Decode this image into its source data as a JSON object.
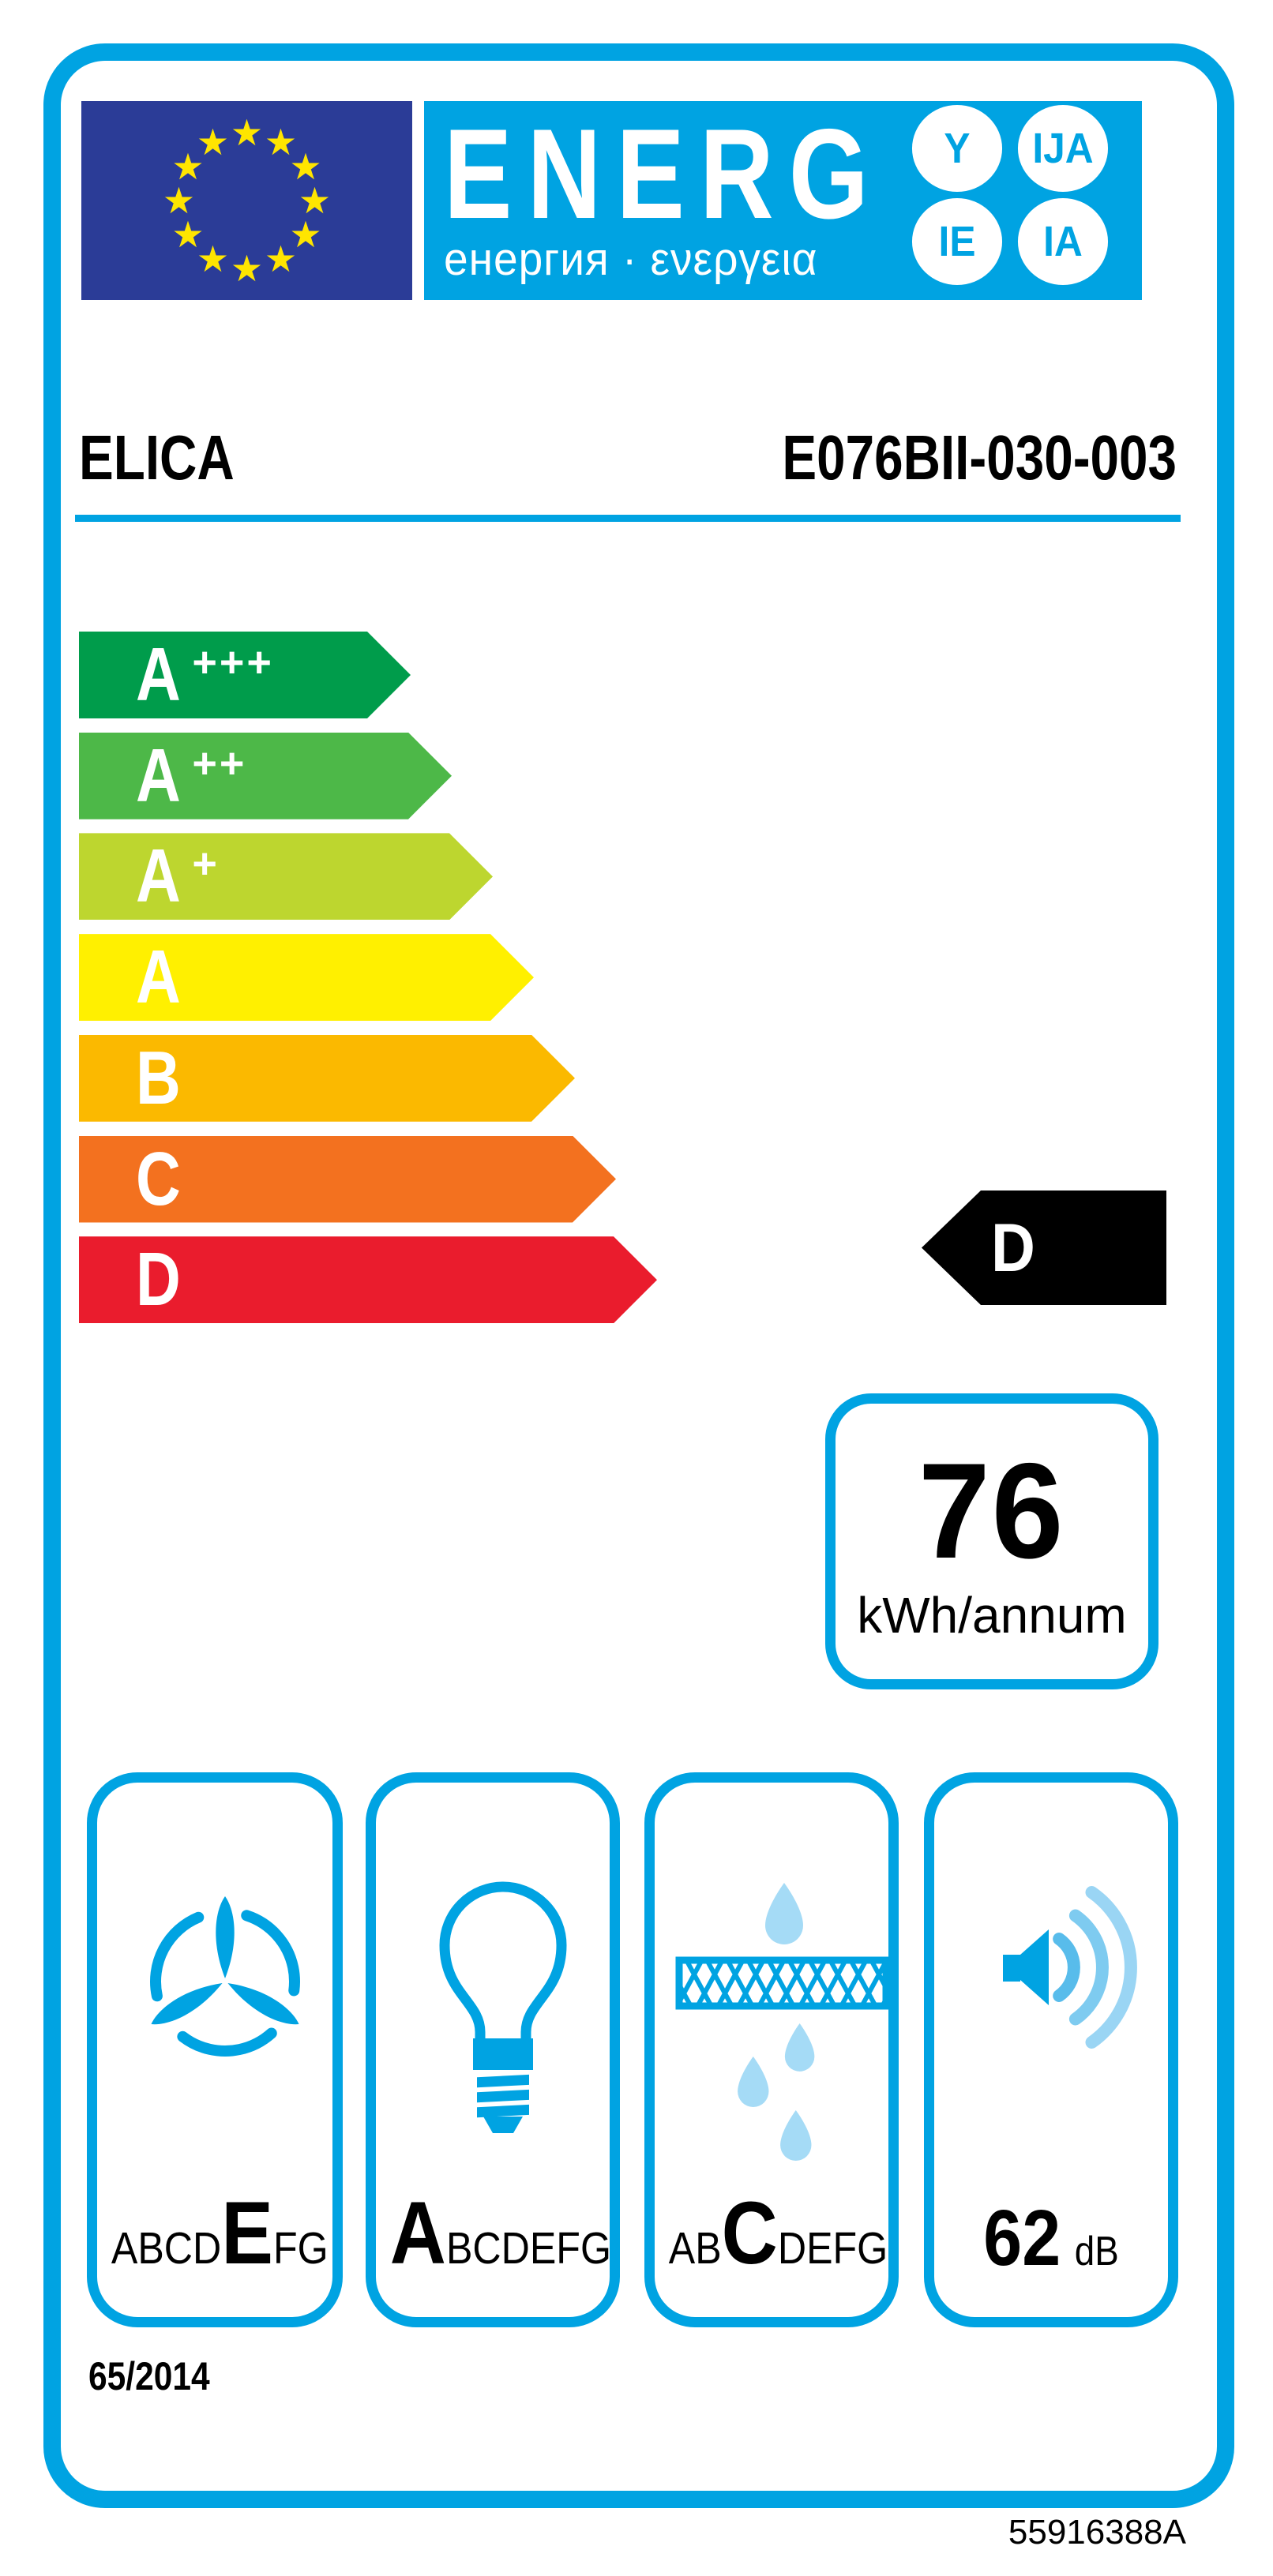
{
  "header": {
    "energ": "ENERG",
    "subtitle": "енергия · ενεργεια",
    "suffixes": [
      "Y",
      "IJA",
      "IE",
      "IA"
    ]
  },
  "product": {
    "brand": "ELICA",
    "model": "E076BII-030-003"
  },
  "scale": [
    {
      "label": "A+++",
      "color": "#009C4B"
    },
    {
      "label": "A++",
      "color": "#4DB848"
    },
    {
      "label": "A+",
      "color": "#BDD62F"
    },
    {
      "label": "A",
      "color": "#FFF000"
    },
    {
      "label": "B",
      "color": "#FBB900"
    },
    {
      "label": "C",
      "color": "#F3711F"
    },
    {
      "label": "D",
      "color": "#EA1C2D"
    }
  ],
  "rating": {
    "class": "D",
    "arrow_color": "#000000"
  },
  "consumption": {
    "value": "76",
    "unit": "kWh/annum"
  },
  "features": {
    "fluid_dynamic": {
      "pre": "ABCD",
      "grade": "E",
      "post": "FG",
      "icon": "fan-icon"
    },
    "lighting": {
      "pre": "",
      "grade": "A",
      "post": "BCDEFG",
      "icon": "light-bulb-icon"
    },
    "grease_filter": {
      "pre": "AB",
      "grade": "C",
      "post": "DEFG",
      "icon": "grease-filter-icon"
    },
    "noise": {
      "value": "62",
      "unit": "dB",
      "icon": "speaker-icon"
    }
  },
  "regulation": "65/2014",
  "document_code": "55916388A",
  "colors": {
    "accent_cyan": "#00A3E2",
    "flag_blue": "#2B3C97",
    "star_yellow": "#FFE500",
    "droplet_light_blue": "#A5DBF6",
    "black": "#000000"
  }
}
